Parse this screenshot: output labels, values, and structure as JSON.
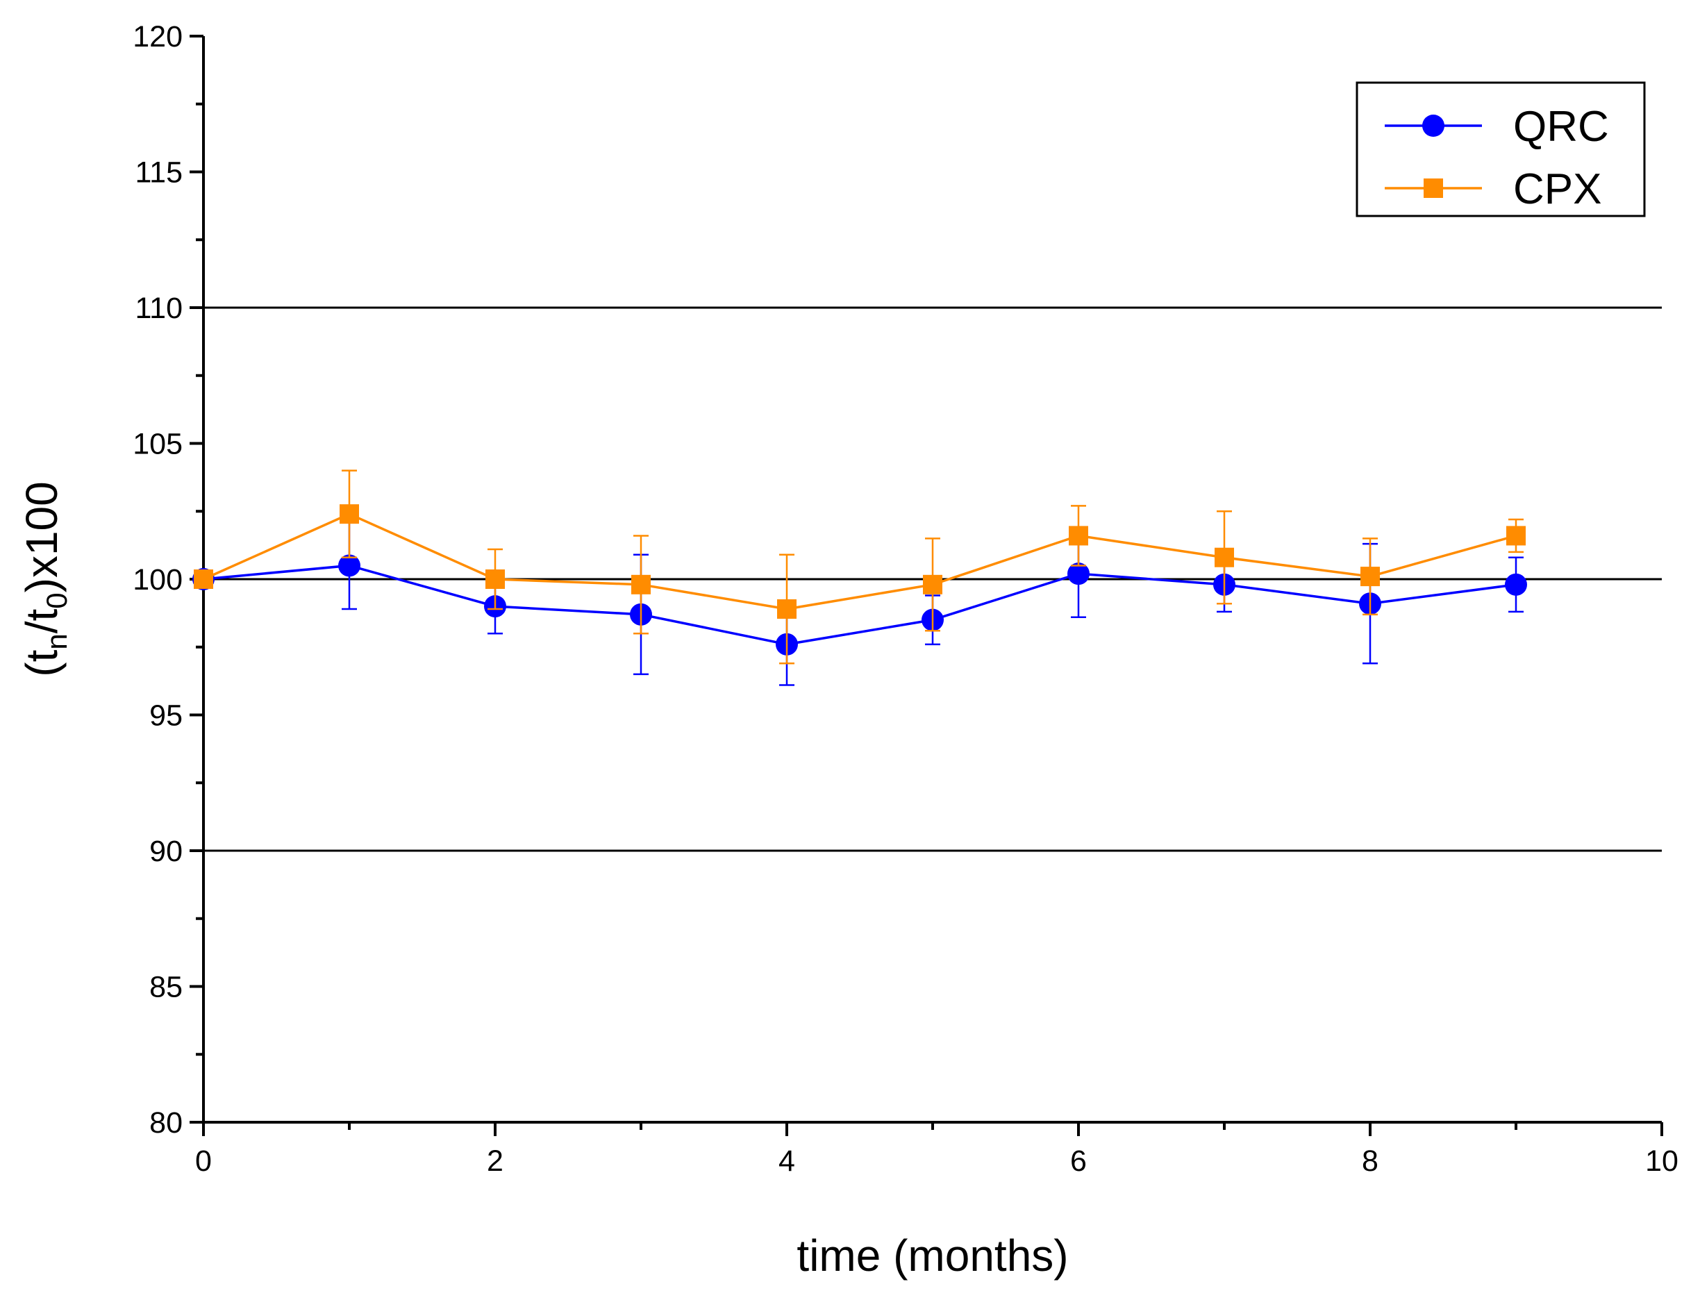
{
  "chart_data": {
    "type": "line",
    "xlabel": "time (months)",
    "ylabel": [
      "(t",
      "n",
      "/t",
      "0",
      ")x100"
    ],
    "x": [
      0,
      1,
      2,
      3,
      4,
      5,
      6,
      7,
      8,
      9
    ],
    "series": [
      {
        "name": "QRC",
        "color": "#0000ff",
        "marker": "circle",
        "values": [
          100,
          100.5,
          99.0,
          98.7,
          97.6,
          98.5,
          100.2,
          99.8,
          99.1,
          99.8
        ],
        "errors": [
          0,
          1.6,
          1.0,
          2.2,
          1.5,
          0.9,
          1.6,
          1.0,
          2.2,
          1.0
        ]
      },
      {
        "name": "CPX",
        "color": "#ff8c00",
        "marker": "square",
        "values": [
          100,
          102.4,
          100.0,
          99.8,
          98.9,
          99.8,
          101.6,
          100.8,
          100.1,
          101.6
        ],
        "errors": [
          0,
          1.6,
          1.1,
          1.8,
          2.0,
          1.7,
          1.1,
          1.7,
          1.4,
          0.6
        ]
      }
    ],
    "xlim": [
      0,
      10
    ],
    "xticks": [
      0,
      2,
      4,
      6,
      8,
      10
    ],
    "xminorticks": [
      1,
      3,
      5,
      7,
      9
    ],
    "ylim": [
      80,
      120
    ],
    "yticks": [
      80,
      85,
      90,
      95,
      100,
      105,
      110,
      115,
      120
    ],
    "yminorticks": [
      82.5,
      87.5,
      92.5,
      97.5,
      102.5,
      107.5,
      112.5,
      117.5
    ],
    "reference_lines": [
      90,
      100,
      110
    ],
    "legend": "upper right"
  }
}
